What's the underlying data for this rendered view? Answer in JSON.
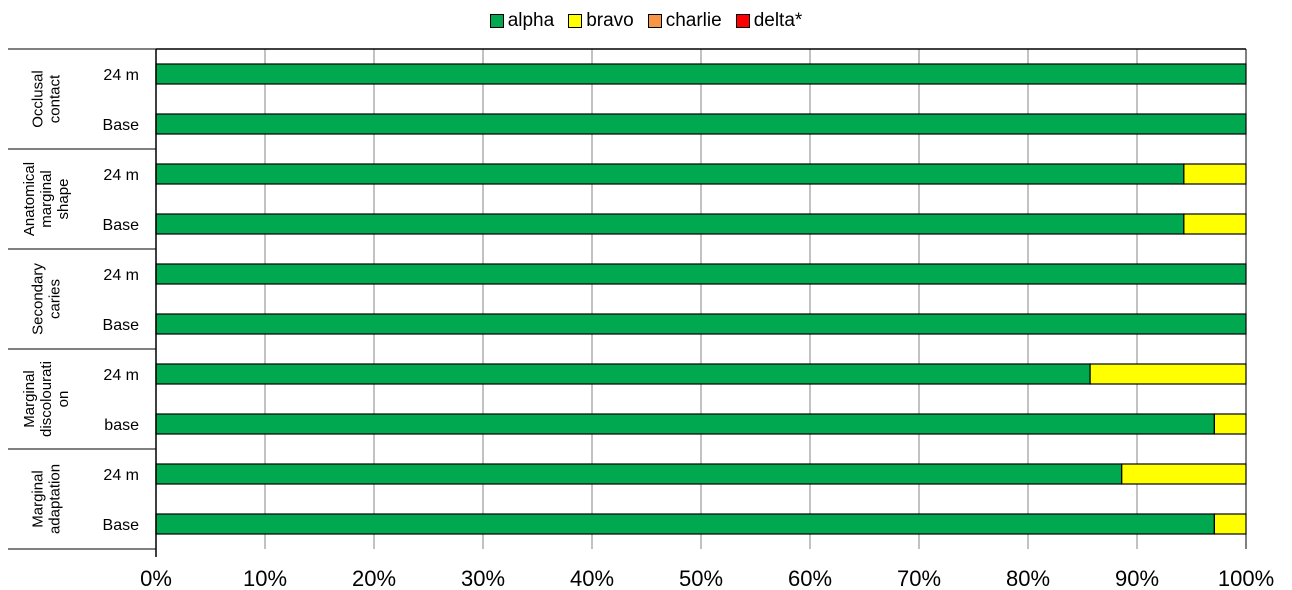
{
  "chart_data": {
    "type": "bar",
    "orientation": "horizontal",
    "stacked": "percent",
    "legend": {
      "position": "top",
      "entries": [
        {
          "name": "alpha",
          "color": "#00A84F"
        },
        {
          "name": "bravo",
          "color": "#FFFF00"
        },
        {
          "name": "charlie",
          "color": "#F79646"
        },
        {
          "name": "delta*",
          "color": "#FF0000"
        }
      ]
    },
    "groups": [
      {
        "label": "Occlusal contact",
        "label_lines": [
          "Occlusal",
          "contact"
        ],
        "rows": [
          "24 m",
          "Base"
        ]
      },
      {
        "label": "Anatomical marginal shape",
        "label_lines": [
          "Anatomical",
          "marginal",
          "shape"
        ],
        "rows": [
          "24 m",
          "Base"
        ]
      },
      {
        "label": "Secondary caries",
        "label_lines": [
          "Secondary",
          "caries"
        ],
        "rows": [
          "24 m",
          "Base"
        ]
      },
      {
        "label": "Marginal discolouration",
        "label_lines": [
          "Marginal",
          "discolourati",
          "on"
        ],
        "rows": [
          "24 m",
          "base"
        ]
      },
      {
        "label": "Marginal adaptation",
        "label_lines": [
          "Marginal",
          "adaptation"
        ],
        "rows": [
          "24 m",
          "Base"
        ]
      }
    ],
    "series": [
      {
        "name": "alpha",
        "values": [
          100,
          100,
          94.3,
          94.3,
          100,
          100,
          85.7,
          97.1,
          88.6,
          97.1
        ]
      },
      {
        "name": "bravo",
        "values": [
          0,
          0,
          5.7,
          5.7,
          0,
          0,
          14.3,
          2.9,
          11.4,
          2.9
        ]
      },
      {
        "name": "charlie",
        "values": [
          0,
          0,
          0,
          0,
          0,
          0,
          0,
          0,
          0,
          0
        ]
      },
      {
        "name": "delta*",
        "values": [
          0,
          0,
          0,
          0,
          0,
          0,
          0,
          0,
          0,
          0
        ]
      }
    ],
    "xlim": [
      0,
      100
    ],
    "xticks": [
      "0%",
      "10%",
      "20%",
      "30%",
      "40%",
      "50%",
      "60%",
      "70%",
      "80%",
      "90%",
      "100%"
    ],
    "grid": true,
    "title": "",
    "xlabel": "",
    "ylabel": ""
  }
}
